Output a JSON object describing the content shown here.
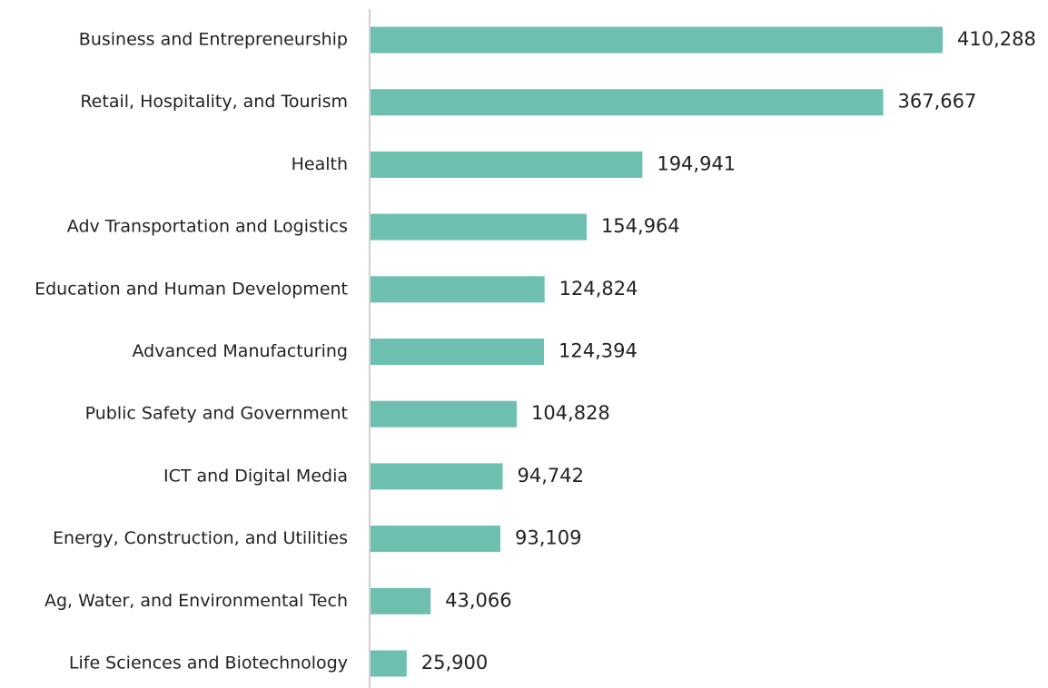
{
  "chart_data": {
    "type": "bar",
    "orientation": "horizontal",
    "categories": [
      "Business and Entrepreneurship",
      "Retail, Hospitality, and Tourism",
      "Health",
      "Adv Transportation and Logistics",
      "Education and Human Development",
      "Advanced Manufacturing",
      "Public Safety and Government",
      "ICT and Digital Media",
      "Energy, Construction, and Utilities",
      "Ag, Water, and Environmental Tech",
      "Life Sciences and Biotechnology"
    ],
    "values": [
      410288,
      367667,
      194941,
      154964,
      124824,
      124394,
      104828,
      94742,
      93109,
      43066,
      25900
    ],
    "value_labels": [
      "410,288",
      "367,667",
      "194,941",
      "154,964",
      "124,824",
      "124,394",
      "104,828",
      "94,742",
      "93,109",
      "43,066",
      "25,900"
    ],
    "color": "#6dbfb0"
  }
}
